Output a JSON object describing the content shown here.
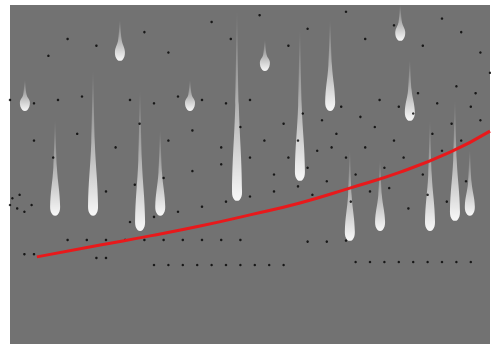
{
  "chart_data": {
    "type": "scatter",
    "xlim": [
      0,
      100
    ],
    "ylim": [
      0,
      100
    ],
    "tick_labels": false,
    "grid": false,
    "series": [
      {
        "type": "range",
        "color": "#ffffff",
        "values": [
          [
            17.3,
            38.1,
            80.8
          ],
          [
            9.4,
            38.1,
            66.1
          ],
          [
            27.1,
            33.6,
            74.9
          ],
          [
            31.3,
            38.1,
            63.1
          ],
          [
            47.3,
            42.5,
            98.5
          ],
          [
            60.4,
            48.4,
            92.6
          ],
          [
            70.8,
            30.7,
            57.2
          ],
          [
            77.1,
            33.6,
            54.3
          ],
          [
            87.5,
            33.6,
            66.1
          ],
          [
            92.7,
            36.6,
            72.0
          ],
          [
            22.9,
            83.8,
            95.6
          ],
          [
            37.5,
            69.0,
            77.9
          ],
          [
            53.1,
            80.8,
            89.7
          ],
          [
            66.7,
            69.0,
            95.6
          ],
          [
            81.3,
            89.7,
            100
          ],
          [
            3.1,
            69.0,
            77.9
          ],
          [
            83.3,
            66.1,
            83.8
          ],
          [
            95.8,
            38.1,
            57.2
          ]
        ]
      },
      {
        "type": "scatter",
        "color": "#000000",
        "marker": "circle",
        "values": [
          [
            30,
            23.3
          ],
          [
            33,
            23.3
          ],
          [
            36,
            23.3
          ],
          [
            39,
            23.3
          ],
          [
            42,
            23.3
          ],
          [
            45,
            23.3
          ],
          [
            48,
            23.3
          ],
          [
            51,
            23.3
          ],
          [
            54,
            23.3
          ],
          [
            57,
            23.3
          ],
          [
            72,
            24.2
          ],
          [
            75,
            24.2
          ],
          [
            78,
            24.2
          ],
          [
            81,
            24.2
          ],
          [
            84,
            24.2
          ],
          [
            87,
            24.2
          ],
          [
            90,
            24.2
          ],
          [
            93,
            24.2
          ],
          [
            96,
            24.2
          ],
          [
            3,
            26.5
          ],
          [
            5,
            26.5
          ],
          [
            18,
            25.4
          ],
          [
            20,
            25.4
          ],
          [
            12,
            30.7
          ],
          [
            16,
            30.7
          ],
          [
            20,
            30.7
          ],
          [
            24,
            30.7
          ],
          [
            28,
            30.7
          ],
          [
            32,
            30.7
          ],
          [
            36,
            30.7
          ],
          [
            40,
            30.7
          ],
          [
            44,
            30.7
          ],
          [
            48,
            30.7
          ],
          [
            62,
            30.2
          ],
          [
            66,
            30.2
          ],
          [
            70,
            30.5
          ],
          [
            0,
            41
          ],
          [
            1.5,
            40
          ],
          [
            3,
            39
          ],
          [
            4.5,
            41
          ],
          [
            0.5,
            43
          ],
          [
            2,
            44
          ],
          [
            25,
            36
          ],
          [
            30,
            37.5
          ],
          [
            35,
            39
          ],
          [
            40,
            40.5
          ],
          [
            45,
            42
          ],
          [
            50,
            43.5
          ],
          [
            55,
            45
          ],
          [
            60,
            46.5
          ],
          [
            20,
            45
          ],
          [
            26,
            47
          ],
          [
            32,
            49
          ],
          [
            38,
            51
          ],
          [
            44,
            53
          ],
          [
            50,
            55
          ],
          [
            55,
            50
          ],
          [
            58,
            55
          ],
          [
            60,
            60
          ],
          [
            62,
            52
          ],
          [
            64,
            57
          ],
          [
            66,
            48
          ],
          [
            68,
            62
          ],
          [
            70,
            55
          ],
          [
            72,
            50
          ],
          [
            74,
            58
          ],
          [
            76,
            64
          ],
          [
            78,
            52
          ],
          [
            80,
            60
          ],
          [
            82,
            55
          ],
          [
            84,
            68
          ],
          [
            86,
            50
          ],
          [
            88,
            62
          ],
          [
            90,
            57
          ],
          [
            92,
            65
          ],
          [
            94,
            60
          ],
          [
            96,
            70
          ],
          [
            98,
            66
          ],
          [
            57,
            65
          ],
          [
            61,
            68
          ],
          [
            65,
            66
          ],
          [
            69,
            70
          ],
          [
            73,
            67
          ],
          [
            77,
            72
          ],
          [
            81,
            70
          ],
          [
            85,
            74
          ],
          [
            89,
            71
          ],
          [
            93,
            76
          ],
          [
            97,
            74
          ],
          [
            100,
            80
          ],
          [
            63,
            44
          ],
          [
            71,
            42
          ],
          [
            79,
            46
          ],
          [
            87,
            44
          ],
          [
            95,
            48
          ],
          [
            53,
            60
          ],
          [
            67,
            58
          ],
          [
            75,
            45
          ],
          [
            83,
            40
          ],
          [
            91,
            42
          ],
          [
            0,
            72
          ],
          [
            5,
            71
          ],
          [
            10,
            72
          ],
          [
            15,
            73
          ],
          [
            25,
            72
          ],
          [
            30,
            71
          ],
          [
            35,
            73
          ],
          [
            40,
            72
          ],
          [
            45,
            71
          ],
          [
            50,
            72
          ],
          [
            8,
            85
          ],
          [
            12,
            90
          ],
          [
            18,
            88
          ],
          [
            28,
            92
          ],
          [
            33,
            86
          ],
          [
            42,
            95
          ],
          [
            46,
            90
          ],
          [
            52,
            97
          ],
          [
            58,
            88
          ],
          [
            62,
            93
          ],
          [
            70,
            98
          ],
          [
            74,
            90
          ],
          [
            80,
            94
          ],
          [
            86,
            88
          ],
          [
            90,
            96
          ],
          [
            94,
            92
          ],
          [
            98,
            86
          ],
          [
            5,
            60
          ],
          [
            9,
            55
          ],
          [
            14,
            62
          ],
          [
            22,
            58
          ],
          [
            27,
            65
          ],
          [
            33,
            60
          ],
          [
            38,
            63
          ],
          [
            44,
            58
          ],
          [
            48,
            64
          ]
        ]
      },
      {
        "type": "line",
        "color": "#e8191b",
        "line_style": "solid",
        "values": [
          [
            5.6,
            25.7
          ],
          [
            18.8,
            29.2
          ],
          [
            29.2,
            31.9
          ],
          [
            39.6,
            34.8
          ],
          [
            50.0,
            38.1
          ],
          [
            60.4,
            41.6
          ],
          [
            70.8,
            46.0
          ],
          [
            81.3,
            50.7
          ],
          [
            91.7,
            56.6
          ],
          [
            100,
            62.8
          ]
        ]
      }
    ]
  }
}
